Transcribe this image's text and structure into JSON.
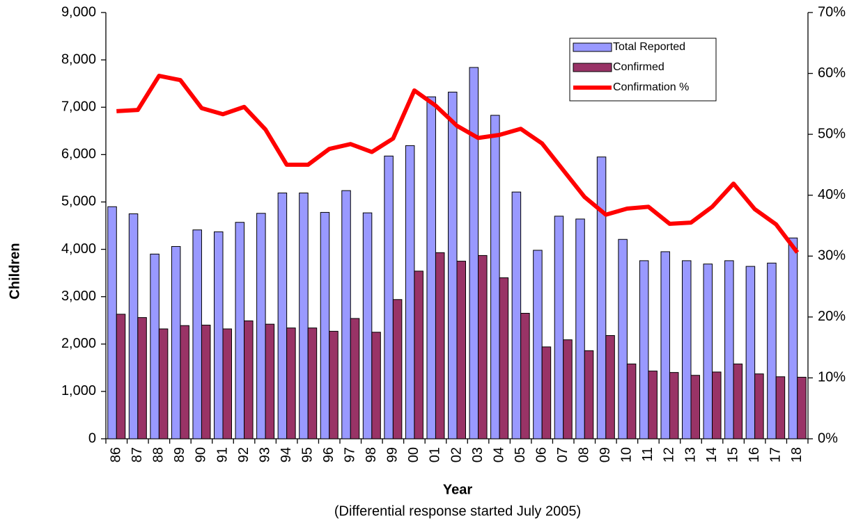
{
  "chart_data": {
    "type": "bar",
    "x_label": "Year",
    "y_label": "Children",
    "annotation": "(Differential response started July 2005)",
    "categories": [
      "86",
      "87",
      "88",
      "89",
      "90",
      "91",
      "92",
      "93",
      "94",
      "95",
      "96",
      "97",
      "98",
      "99",
      "00",
      "01",
      "02",
      "03",
      "04",
      "05",
      "06",
      "07",
      "08",
      "09",
      "10",
      "11",
      "12",
      "13",
      "14",
      "15",
      "16",
      "17",
      "18"
    ],
    "series": [
      {
        "name": "Total Reported",
        "color": "#9999ff",
        "values": [
          4900,
          4750,
          3900,
          4060,
          4410,
          4370,
          4570,
          4760,
          5190,
          5190,
          4780,
          5240,
          4770,
          5970,
          6190,
          7220,
          7320,
          7840,
          6830,
          5210,
          3980,
          4700,
          4640,
          5950,
          4210,
          3760,
          3950,
          3760,
          3690,
          3760,
          3640,
          3710,
          4240
        ]
      },
      {
        "name": "Confirmed",
        "color": "#993366",
        "values": [
          2630,
          2560,
          2320,
          2390,
          2400,
          2320,
          2490,
          2420,
          2340,
          2340,
          2270,
          2540,
          2250,
          2940,
          3540,
          3930,
          3750,
          3870,
          3400,
          2650,
          1940,
          2090,
          1860,
          2180,
          1580,
          1430,
          1400,
          1340,
          1410,
          1580,
          1370,
          1310,
          1300
        ]
      },
      {
        "name": "Confirmation %",
        "color": "#ff0000",
        "type": "line",
        "axis": "y2",
        "values": [
          53.8,
          54.0,
          59.6,
          58.9,
          54.3,
          53.3,
          54.5,
          50.8,
          45.0,
          45.0,
          47.6,
          48.4,
          47.1,
          49.3,
          57.2,
          54.7,
          51.4,
          49.4,
          49.9,
          50.9,
          48.5,
          44.1,
          39.7,
          36.8,
          37.8,
          38.1,
          35.3,
          35.5,
          38.1,
          41.9,
          37.7,
          35.2,
          30.6
        ]
      }
    ],
    "ylim": [
      0,
      9000
    ],
    "yticks": [
      0,
      {
        "value": 1000,
        "label": "1,000"
      },
      {
        "value": 2000,
        "label": "2,000"
      },
      {
        "value": 3000,
        "label": "3,000"
      },
      {
        "value": 4000,
        "label": "4,000"
      },
      {
        "value": 5000,
        "label": "5,000"
      },
      {
        "value": 6000,
        "label": "6,000"
      },
      {
        "value": 7000,
        "label": "7,000"
      },
      {
        "value": 8000,
        "label": "8,000"
      },
      {
        "value": 9000,
        "label": "9,000"
      }
    ],
    "y2lim": [
      0,
      70
    ],
    "y2ticks": [
      {
        "value": 0,
        "label": "0%"
      },
      {
        "value": 10,
        "label": "10%"
      },
      {
        "value": 20,
        "label": "20%"
      },
      {
        "value": 30,
        "label": "30%"
      },
      {
        "value": 40,
        "label": "40%"
      },
      {
        "value": 50,
        "label": "50%"
      },
      {
        "value": 60,
        "label": "60%"
      },
      {
        "value": 70,
        "label": "70%"
      }
    ],
    "grid": false,
    "legend_position": "upper right"
  }
}
